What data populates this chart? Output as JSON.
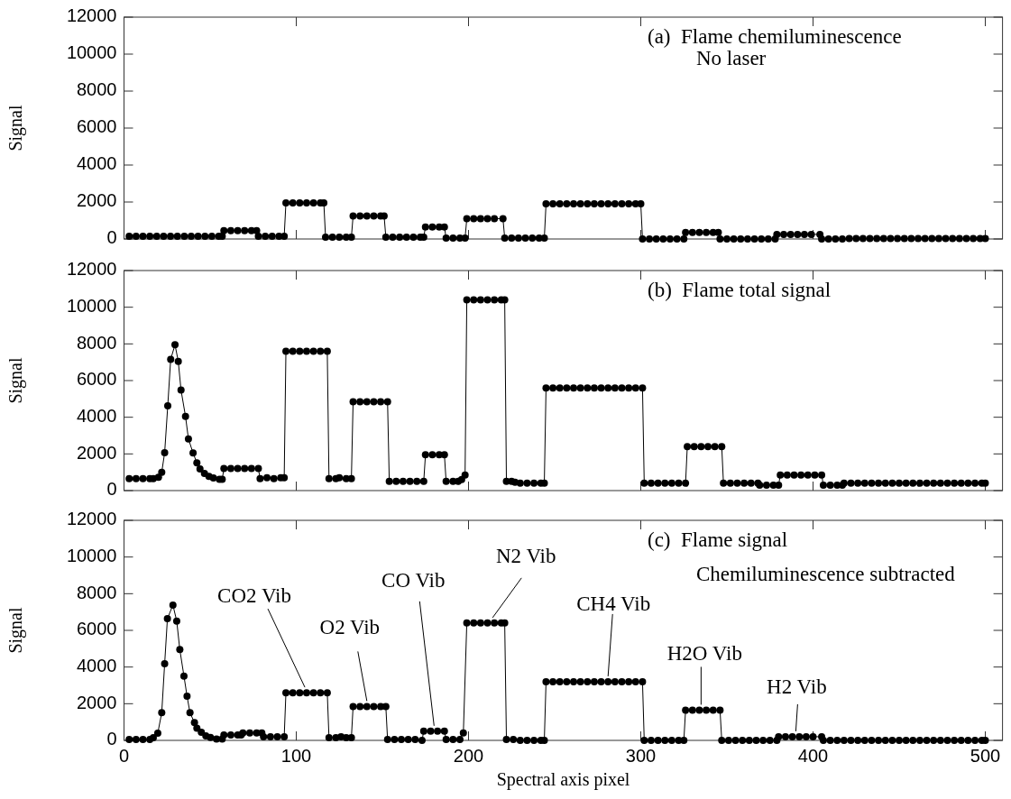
{
  "chart_data": [
    {
      "type": "line",
      "ylabel": "Signal",
      "xlim": [
        0,
        510
      ],
      "xticks": [
        0,
        100,
        200,
        300,
        400,
        500
      ],
      "ylim": [
        0,
        12000
      ],
      "yticks": [
        0,
        2000,
        4000,
        6000,
        8000,
        10000,
        12000
      ],
      "tick_labels": "y",
      "marker": "circle",
      "line_style": "solid",
      "annotations": [
        "(a)  Flame chemiluminescence",
        "No laser"
      ],
      "series": [
        {
          "color": "#000000",
          "x": [
            3,
            7,
            11,
            15,
            19,
            23,
            27,
            31,
            35,
            39,
            43,
            47,
            51,
            55,
            57,
            58,
            62,
            66,
            70,
            74,
            77,
            78,
            82,
            86,
            90,
            93,
            94,
            98,
            102,
            106,
            110,
            114,
            116,
            117,
            121,
            125,
            129,
            132,
            133,
            137,
            141,
            145,
            149,
            151,
            152,
            156,
            160,
            164,
            168,
            172,
            174,
            175,
            179,
            183,
            186,
            187,
            191,
            195,
            198,
            199,
            203,
            207,
            211,
            215,
            220,
            221,
            225,
            229,
            233,
            237,
            241,
            244,
            245,
            249,
            253,
            257,
            261,
            265,
            269,
            273,
            277,
            281,
            285,
            289,
            293,
            297,
            300,
            301,
            305,
            309,
            313,
            317,
            321,
            325,
            326,
            330,
            334,
            338,
            342,
            345,
            346,
            350,
            354,
            358,
            362,
            366,
            370,
            374,
            378,
            379,
            383,
            387,
            391,
            395,
            399,
            404,
            405,
            409,
            413,
            417,
            421,
            425,
            429,
            433,
            437,
            441,
            445,
            449,
            453,
            457,
            461,
            465,
            469,
            473,
            477,
            481,
            485,
            489,
            493,
            497,
            500
          ],
          "values": [
            150,
            150,
            150,
            150,
            150,
            150,
            150,
            150,
            150,
            150,
            150,
            150,
            150,
            150,
            150,
            450,
            450,
            450,
            450,
            450,
            450,
            150,
            150,
            150,
            150,
            150,
            1950,
            1950,
            1950,
            1950,
            1950,
            1950,
            1950,
            100,
            100,
            100,
            100,
            100,
            1250,
            1250,
            1250,
            1250,
            1250,
            1250,
            100,
            100,
            100,
            100,
            100,
            100,
            100,
            650,
            650,
            650,
            650,
            50,
            50,
            50,
            50,
            1100,
            1100,
            1100,
            1100,
            1100,
            1100,
            50,
            50,
            50,
            50,
            50,
            50,
            50,
            1900,
            1900,
            1900,
            1900,
            1900,
            1900,
            1900,
            1900,
            1900,
            1900,
            1900,
            1900,
            1900,
            1900,
            1900,
            0,
            0,
            0,
            0,
            0,
            0,
            0,
            350,
            350,
            350,
            350,
            350,
            350,
            0,
            0,
            0,
            0,
            0,
            0,
            0,
            0,
            0,
            250,
            250,
            250,
            250,
            250,
            250,
            250,
            0,
            0,
            0,
            0,
            30,
            30,
            30,
            30,
            30,
            30,
            30,
            30,
            30,
            30,
            30,
            30,
            30,
            30,
            30,
            30,
            30,
            30,
            30,
            30,
            30
          ]
        }
      ]
    },
    {
      "type": "line",
      "ylabel": "Signal",
      "xlim": [
        0,
        510
      ],
      "xticks": [
        0,
        100,
        200,
        300,
        400,
        500
      ],
      "ylim": [
        0,
        12000
      ],
      "yticks": [
        0,
        2000,
        4000,
        6000,
        8000,
        10000,
        12000
      ],
      "tick_labels": "y",
      "marker": "circle",
      "line_style": "solid",
      "annotations": [
        "(b)  Flame total signal"
      ],
      "series": [
        {
          "color": "#000000",
          "x": [
            3,
            7,
            11,
            15,
            17,
            20,
            21.9,
            23.6,
            25.4,
            27.1,
            29.6,
            31.5,
            33.1,
            35.7,
            37.4,
            40.1,
            42.3,
            44.1,
            46.7,
            49.3,
            51.9,
            55.4,
            57,
            58,
            62,
            66,
            70,
            74,
            78,
            79,
            83,
            87,
            91,
            93,
            94,
            98,
            102,
            106,
            110,
            114,
            118,
            119,
            123,
            125,
            129,
            132,
            133,
            137,
            141,
            145,
            149,
            153,
            154,
            158,
            162,
            166,
            170,
            174,
            175,
            179,
            183,
            186,
            187,
            191,
            194,
            196,
            198,
            199,
            203,
            207,
            211,
            215,
            219,
            221,
            222,
            225,
            227,
            230,
            234,
            238,
            242,
            244,
            245,
            249,
            253,
            257,
            261,
            265,
            269,
            273,
            277,
            281,
            285,
            289,
            293,
            297,
            301,
            302,
            306,
            310,
            314,
            318,
            322,
            326,
            327,
            331,
            335,
            339,
            343,
            347,
            348,
            352,
            356,
            360,
            364,
            368,
            369,
            373,
            377,
            380,
            381,
            385,
            389,
            393,
            397,
            401,
            405,
            406,
            410,
            414,
            417,
            418,
            422,
            426,
            430,
            434,
            438,
            442,
            446,
            450,
            454,
            458,
            462,
            466,
            470,
            474,
            478,
            482,
            486,
            490,
            494,
            498,
            500
          ],
          "values": [
            650,
            650,
            650,
            650,
            650,
            720,
            1000,
            2070,
            4620,
            7160,
            7950,
            7050,
            5480,
            4050,
            2820,
            2050,
            1510,
            1180,
            930,
            770,
            690,
            610,
            610,
            1200,
            1200,
            1200,
            1200,
            1200,
            1200,
            650,
            700,
            650,
            700,
            700,
            7600,
            7600,
            7600,
            7600,
            7600,
            7600,
            7600,
            650,
            650,
            700,
            650,
            650,
            4850,
            4850,
            4850,
            4850,
            4850,
            4850,
            500,
            500,
            500,
            500,
            500,
            500,
            1950,
            1950,
            1950,
            1950,
            500,
            500,
            500,
            600,
            850,
            10400,
            10400,
            10400,
            10400,
            10400,
            10400,
            10400,
            500,
            500,
            450,
            400,
            400,
            400,
            400,
            400,
            5600,
            5600,
            5600,
            5600,
            5600,
            5600,
            5600,
            5600,
            5600,
            5600,
            5600,
            5600,
            5600,
            5600,
            5600,
            400,
            400,
            400,
            400,
            400,
            400,
            400,
            2400,
            2400,
            2400,
            2400,
            2400,
            2400,
            400,
            400,
            400,
            400,
            400,
            400,
            300,
            300,
            300,
            300,
            850,
            850,
            850,
            850,
            850,
            850,
            850,
            300,
            300,
            300,
            300,
            400,
            400,
            400,
            400,
            400,
            400,
            400,
            400,
            400,
            400,
            400,
            400,
            400,
            400,
            400,
            400,
            400,
            400,
            400,
            400,
            400,
            400
          ]
        }
      ]
    },
    {
      "type": "line",
      "ylabel": "Signal",
      "xlabel": "Spectral axis pixel",
      "xlim": [
        0,
        510
      ],
      "xticks": [
        0,
        100,
        200,
        300,
        400,
        500
      ],
      "ylim": [
        0,
        12000
      ],
      "yticks": [
        0,
        2000,
        4000,
        6000,
        8000,
        10000,
        12000
      ],
      "marker": "circle",
      "line_style": "solid",
      "annotations": [
        "(c)  Flame signal",
        "Chemiluminescence subtracted",
        {
          "text": "CO2 Vib",
          "x": 105,
          "y": 2600
        },
        {
          "text": "O2 Vib",
          "x": 141,
          "y": 1850
        },
        {
          "text": "CO Vib",
          "x": 180,
          "y": 500
        },
        {
          "text": "N2 Vib",
          "x": 214,
          "y": 6400
        },
        {
          "text": "CH4 Vib",
          "x": 281,
          "y": 3200
        },
        {
          "text": "H2O Vib",
          "x": 335,
          "y": 1650
        },
        {
          "text": "H2 Vib",
          "x": 390,
          "y": 200
        }
      ],
      "series": [
        {
          "color": "#000000",
          "x": [
            3,
            7,
            11,
            15,
            17,
            19.6,
            21.9,
            23.6,
            25.2,
            28.4,
            30.6,
            32.4,
            34.8,
            36.6,
            38.3,
            40.9,
            42.3,
            44.9,
            47.5,
            50.2,
            53.7,
            57,
            58,
            62,
            66,
            68,
            69,
            73,
            77,
            80,
            81,
            85,
            89,
            93,
            94,
            98,
            102,
            106,
            110,
            114,
            118,
            119,
            123,
            126,
            129,
            132,
            133,
            137,
            141,
            145,
            149,
            152,
            153,
            157,
            161,
            165,
            169,
            173,
            174,
            178,
            182,
            186,
            187,
            191,
            195,
            197,
            199,
            203,
            207,
            211,
            215,
            219,
            221,
            222,
            226,
            230,
            234,
            238,
            242,
            244,
            245,
            249,
            253,
            257,
            261,
            265,
            269,
            273,
            277,
            281,
            285,
            289,
            293,
            297,
            301,
            302,
            306,
            310,
            314,
            318,
            322,
            325,
            326,
            330,
            334,
            338,
            342,
            346,
            347,
            351,
            355,
            359,
            363,
            367,
            371,
            375,
            379,
            380,
            384,
            388,
            392,
            396,
            400,
            405,
            406,
            410,
            414,
            418,
            422,
            426,
            430,
            434,
            438,
            442,
            446,
            450,
            454,
            458,
            462,
            466,
            470,
            474,
            478,
            482,
            486,
            490,
            494,
            498,
            500
          ],
          "values": [
            50,
            50,
            50,
            50,
            150,
            390,
            1510,
            4180,
            6640,
            7380,
            6510,
            4950,
            3510,
            2410,
            1510,
            970,
            660,
            440,
            250,
            160,
            70,
            70,
            300,
            300,
            300,
            300,
            400,
            400,
            400,
            400,
            200,
            200,
            200,
            200,
            2600,
            2600,
            2600,
            2600,
            2600,
            2600,
            2600,
            150,
            150,
            200,
            150,
            150,
            1850,
            1850,
            1850,
            1850,
            1850,
            1850,
            50,
            50,
            50,
            50,
            50,
            0,
            500,
            500,
            500,
            500,
            50,
            50,
            50,
            400,
            6400,
            6400,
            6400,
            6400,
            6400,
            6400,
            6400,
            50,
            50,
            0,
            0,
            0,
            0,
            0,
            3200,
            3200,
            3200,
            3200,
            3200,
            3200,
            3200,
            3200,
            3200,
            3200,
            3200,
            3200,
            3200,
            3200,
            3200,
            0,
            0,
            0,
            0,
            0,
            0,
            0,
            1650,
            1650,
            1650,
            1650,
            1650,
            1650,
            0,
            0,
            0,
            0,
            0,
            0,
            0,
            0,
            0,
            200,
            200,
            200,
            200,
            200,
            200,
            200,
            0,
            0,
            0,
            0,
            0,
            0,
            0,
            0,
            0,
            0,
            0,
            0,
            0,
            0,
            0,
            0,
            0,
            0,
            0,
            0,
            0,
            0,
            0,
            0,
            0
          ]
        }
      ]
    }
  ]
}
